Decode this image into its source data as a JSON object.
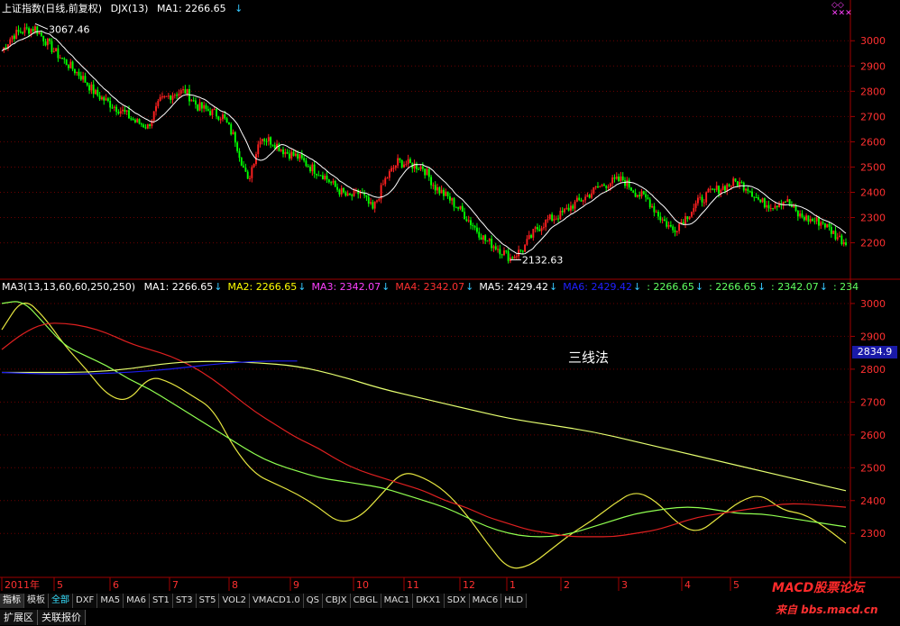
{
  "top_header": {
    "title": "上证指数(日线,前复权)",
    "indicator": "DJX(13)",
    "ma1_label": "MA1: 2266.65"
  },
  "lower_header": {
    "name": "MA3(13,13,60,60,250,250)",
    "items": [
      {
        "label": "MA1: 2266.65",
        "color": "#ffffff"
      },
      {
        "label": "MA2: 2266.65",
        "color": "#ffff00"
      },
      {
        "label": "MA3: 2342.07",
        "color": "#ff40ff"
      },
      {
        "label": "MA4: 2342.07",
        "color": "#ff3030"
      },
      {
        "label": "MA5: 2429.42",
        "color": "#ffffff"
      },
      {
        "label": "MA6: 2429.42",
        "color": "#2020ff"
      },
      {
        "label": ": 2266.65",
        "color": "#60ff60"
      },
      {
        "label": ": 2266.65",
        "color": "#60ff60"
      },
      {
        "label": ": 2342.07",
        "color": "#60ff60"
      },
      {
        "label": ": 234",
        "color": "#60ff60"
      }
    ]
  },
  "note_text": "三线法",
  "price_box": "2834.9",
  "markers": {
    "high": "3067.46",
    "low": "2132.63"
  },
  "x_axis_labels": [
    "2011年",
    "5",
    "6",
    "7",
    "8",
    "9",
    "10",
    "11",
    "12",
    "1",
    "2",
    "3",
    "4",
    "5"
  ],
  "buttons": [
    "指标",
    "模板",
    "全部",
    "DXF",
    "MA5",
    "MA6",
    "ST1",
    "ST3",
    "ST5",
    "VOL2",
    "VMACD1.0",
    "QS",
    "CBJX",
    "CBGL",
    "MAC1",
    "DKX1",
    "SDX",
    "MAC6",
    "HLD"
  ],
  "bottom_tabs": [
    "扩展区",
    "关联报价"
  ],
  "watermark": {
    "line1": "MACD股票论坛",
    "line2": "来自 bbs.macd.cn"
  },
  "colors": {
    "up": "#ff2020",
    "down": "#00ff00",
    "ma_white": "#ffffff",
    "ma_yellow": "#e6e640",
    "ma_green": "#90ff50",
    "ma_red": "#e02020",
    "ma_blue": "#1c1cf0",
    "axis": "#a00000"
  },
  "chart_data": [
    {
      "type": "candlestick",
      "title": "上证指数(日线,前复权)",
      "y_ticks": [
        3000,
        2900,
        2800,
        2700,
        2600,
        2500,
        2400,
        2300,
        2200
      ],
      "ylim": [
        2120,
        3090
      ],
      "annotations": [
        {
          "text": "3067.46",
          "value": 3067.46
        },
        {
          "text": "2132.63",
          "value": 2132.63
        }
      ],
      "close_path_points": [
        [
          0,
          2960
        ],
        [
          5,
          3020
        ],
        [
          10,
          3040
        ],
        [
          16,
          3050
        ],
        [
          20,
          3010
        ],
        [
          25,
          2960
        ],
        [
          30,
          2920
        ],
        [
          38,
          2860
        ],
        [
          45,
          2790
        ],
        [
          52,
          2750
        ],
        [
          58,
          2720
        ],
        [
          64,
          2680
        ],
        [
          70,
          2660
        ],
        [
          76,
          2760
        ],
        [
          82,
          2790
        ],
        [
          88,
          2800
        ],
        [
          94,
          2740
        ],
        [
          100,
          2720
        ],
        [
          106,
          2700
        ],
        [
          112,
          2610
        ],
        [
          118,
          2440
        ],
        [
          124,
          2620
        ],
        [
          130,
          2600
        ],
        [
          136,
          2560
        ],
        [
          142,
          2540
        ],
        [
          148,
          2500
        ],
        [
          154,
          2470
        ],
        [
          160,
          2420
        ],
        [
          166,
          2380
        ],
        [
          172,
          2400
        ],
        [
          178,
          2330
        ],
        [
          184,
          2450
        ],
        [
          190,
          2520
        ],
        [
          196,
          2510
        ],
        [
          202,
          2500
        ],
        [
          208,
          2420
        ],
        [
          214,
          2380
        ],
        [
          220,
          2330
        ],
        [
          226,
          2270
        ],
        [
          232,
          2210
        ],
        [
          238,
          2180
        ],
        [
          244,
          2140
        ],
        [
          250,
          2175
        ],
        [
          256,
          2250
        ],
        [
          262,
          2290
        ],
        [
          268,
          2310
        ],
        [
          274,
          2350
        ],
        [
          280,
          2380
        ],
        [
          286,
          2420
        ],
        [
          292,
          2440
        ],
        [
          298,
          2450
        ],
        [
          304,
          2400
        ],
        [
          310,
          2370
        ],
        [
          316,
          2300
        ],
        [
          322,
          2250
        ],
        [
          328,
          2300
        ],
        [
          334,
          2360
        ],
        [
          340,
          2400
        ],
        [
          346,
          2420
        ],
        [
          352,
          2440
        ],
        [
          358,
          2420
        ],
        [
          364,
          2360
        ],
        [
          370,
          2350
        ],
        [
          376,
          2370
        ],
        [
          382,
          2310
        ],
        [
          388,
          2290
        ],
        [
          394,
          2280
        ],
        [
          400,
          2230
        ],
        [
          405,
          2200
        ]
      ]
    },
    {
      "type": "line",
      "title": "MA3(13,13,60,60,250,250)",
      "y_ticks": [
        3000,
        2900,
        2800,
        2700,
        2600,
        2500,
        2400,
        2300
      ],
      "ylim": [
        2180,
        3030
      ],
      "series": [
        {
          "name": "MA1",
          "color": "#e6e640",
          "values": [
            [
              0,
              2920
            ],
            [
              10,
              3020
            ],
            [
              20,
              2960
            ],
            [
              30,
              2870
            ],
            [
              40,
              2800
            ],
            [
              50,
              2720
            ],
            [
              60,
              2700
            ],
            [
              70,
              2780
            ],
            [
              80,
              2760
            ],
            [
              90,
              2720
            ],
            [
              100,
              2680
            ],
            [
              110,
              2560
            ],
            [
              120,
              2480
            ],
            [
              130,
              2450
            ],
            [
              140,
              2420
            ],
            [
              150,
              2380
            ],
            [
              160,
              2330
            ],
            [
              170,
              2350
            ],
            [
              180,
              2420
            ],
            [
              190,
              2490
            ],
            [
              200,
              2470
            ],
            [
              210,
              2430
            ],
            [
              220,
              2360
            ],
            [
              230,
              2270
            ],
            [
              240,
              2190
            ],
            [
              250,
              2200
            ],
            [
              260,
              2250
            ],
            [
              270,
              2300
            ],
            [
              280,
              2340
            ],
            [
              290,
              2390
            ],
            [
              300,
              2430
            ],
            [
              310,
              2400
            ],
            [
              320,
              2330
            ],
            [
              330,
              2300
            ],
            [
              340,
              2350
            ],
            [
              350,
              2400
            ],
            [
              360,
              2420
            ],
            [
              370,
              2370
            ],
            [
              380,
              2360
            ],
            [
              390,
              2320
            ],
            [
              400,
              2270
            ]
          ]
        },
        {
          "name": "MA3",
          "color": "#90ff50",
          "values": [
            [
              0,
              3000
            ],
            [
              10,
              3010
            ],
            [
              20,
              2940
            ],
            [
              30,
              2870
            ],
            [
              40,
              2840
            ],
            [
              50,
              2810
            ],
            [
              60,
              2770
            ],
            [
              70,
              2740
            ],
            [
              80,
              2700
            ],
            [
              90,
              2660
            ],
            [
              100,
              2620
            ],
            [
              110,
              2580
            ],
            [
              120,
              2540
            ],
            [
              130,
              2510
            ],
            [
              140,
              2490
            ],
            [
              150,
              2470
            ],
            [
              160,
              2460
            ],
            [
              170,
              2450
            ],
            [
              180,
              2440
            ],
            [
              190,
              2420
            ],
            [
              200,
              2400
            ],
            [
              210,
              2380
            ],
            [
              220,
              2350
            ],
            [
              230,
              2320
            ],
            [
              240,
              2300
            ],
            [
              250,
              2290
            ],
            [
              260,
              2290
            ],
            [
              270,
              2300
            ],
            [
              280,
              2320
            ],
            [
              290,
              2340
            ],
            [
              300,
              2360
            ],
            [
              310,
              2370
            ],
            [
              320,
              2380
            ],
            [
              330,
              2380
            ],
            [
              340,
              2370
            ],
            [
              350,
              2360
            ],
            [
              360,
              2360
            ],
            [
              370,
              2350
            ],
            [
              380,
              2340
            ],
            [
              390,
              2330
            ],
            [
              400,
              2320
            ]
          ]
        },
        {
          "name": "MA4",
          "color": "#e02020",
          "values": [
            [
              0,
              2860
            ],
            [
              10,
              2910
            ],
            [
              20,
              2940
            ],
            [
              30,
              2940
            ],
            [
              40,
              2930
            ],
            [
              50,
              2910
            ],
            [
              60,
              2880
            ],
            [
              70,
              2860
            ],
            [
              80,
              2840
            ],
            [
              90,
              2810
            ],
            [
              100,
              2770
            ],
            [
              110,
              2720
            ],
            [
              120,
              2670
            ],
            [
              130,
              2630
            ],
            [
              140,
              2590
            ],
            [
              150,
              2560
            ],
            [
              160,
              2520
            ],
            [
              170,
              2490
            ],
            [
              180,
              2470
            ],
            [
              190,
              2450
            ],
            [
              200,
              2430
            ],
            [
              210,
              2400
            ],
            [
              220,
              2380
            ],
            [
              230,
              2350
            ],
            [
              240,
              2330
            ],
            [
              250,
              2310
            ],
            [
              260,
              2300
            ],
            [
              270,
              2290
            ],
            [
              280,
              2290
            ],
            [
              290,
              2290
            ],
            [
              300,
              2300
            ],
            [
              310,
              2310
            ],
            [
              320,
              2330
            ],
            [
              330,
              2350
            ],
            [
              340,
              2360
            ],
            [
              350,
              2370
            ],
            [
              360,
              2380
            ],
            [
              370,
              2390
            ],
            [
              380,
              2390
            ],
            [
              390,
              2385
            ],
            [
              400,
              2380
            ]
          ]
        },
        {
          "name": "MA5",
          "color": "#e6ff70",
          "values": [
            [
              0,
              2790
            ],
            [
              20,
              2790
            ],
            [
              40,
              2790
            ],
            [
              60,
              2800
            ],
            [
              80,
              2820
            ],
            [
              100,
              2825
            ],
            [
              120,
              2820
            ],
            [
              140,
              2810
            ],
            [
              160,
              2780
            ],
            [
              180,
              2740
            ],
            [
              200,
              2710
            ],
            [
              220,
              2680
            ],
            [
              240,
              2650
            ],
            [
              260,
              2630
            ],
            [
              280,
              2610
            ],
            [
              300,
              2580
            ],
            [
              320,
              2550
            ],
            [
              340,
              2520
            ],
            [
              360,
              2490
            ],
            [
              380,
              2460
            ],
            [
              400,
              2430
            ]
          ]
        },
        {
          "name": "MA6",
          "color": "#1c1cf0",
          "values": [
            [
              0,
              2790
            ],
            [
              20,
              2785
            ],
            [
              40,
              2785
            ],
            [
              60,
              2790
            ],
            [
              80,
              2800
            ],
            [
              100,
              2815
            ],
            [
              120,
              2825
            ],
            [
              140,
              2825
            ]
          ]
        }
      ]
    }
  ]
}
